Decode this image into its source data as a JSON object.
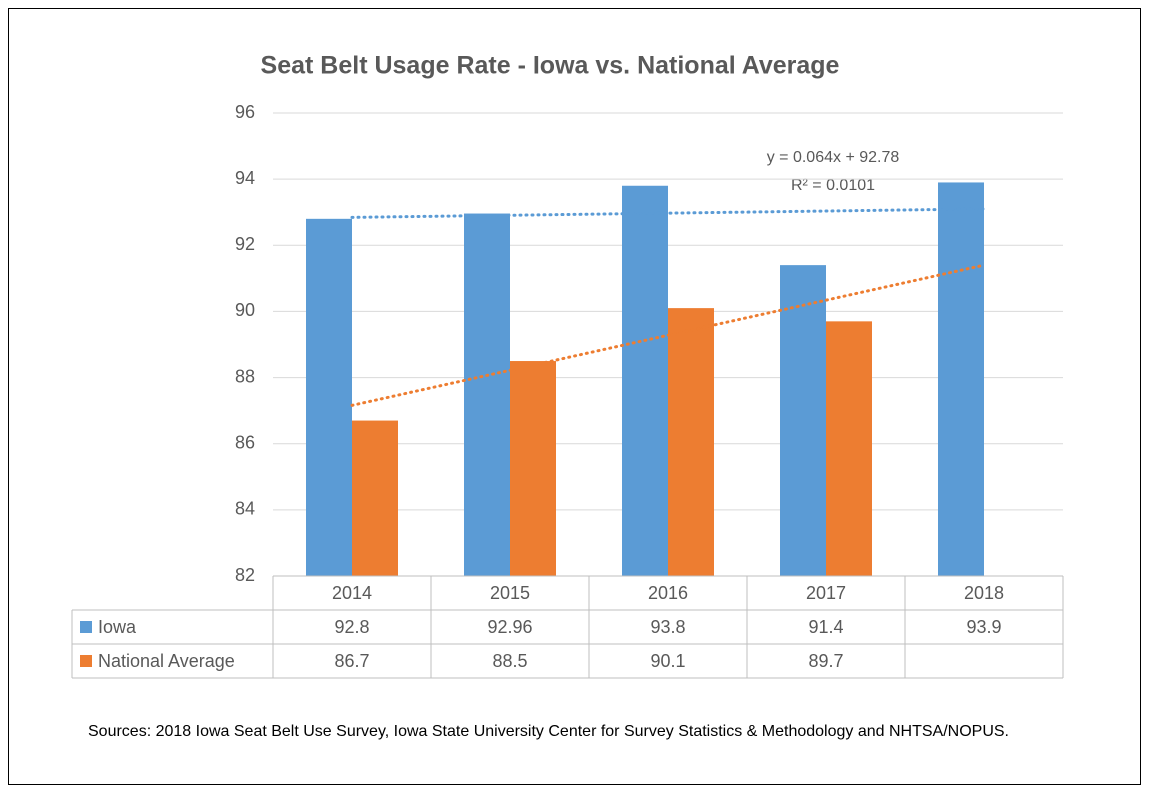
{
  "chart_data": {
    "type": "bar",
    "title": "Seat Belt Usage Rate - Iowa vs. National Average",
    "categories": [
      "2014",
      "2015",
      "2016",
      "2017",
      "2018"
    ],
    "series": [
      {
        "name": "Iowa",
        "color": "#5b9bd5",
        "values": [
          92.8,
          92.96,
          93.8,
          91.4,
          93.9
        ]
      },
      {
        "name": "National Average",
        "color": "#ed7d31",
        "values": [
          86.7,
          88.5,
          90.1,
          89.7,
          null
        ]
      }
    ],
    "ylim": [
      82,
      96
    ],
    "yticks": [
      82,
      84,
      86,
      88,
      90,
      92,
      94,
      96
    ],
    "grid": true,
    "trendline": true,
    "data_table": true,
    "annotations": [
      "y = 0.064x + 92.78",
      "R² = 0.0101"
    ],
    "source": "Sources:  2018 Iowa Seat Belt Use Survey, Iowa State University Center for Survey Statistics & Methodology and NHTSA/NOPUS."
  }
}
